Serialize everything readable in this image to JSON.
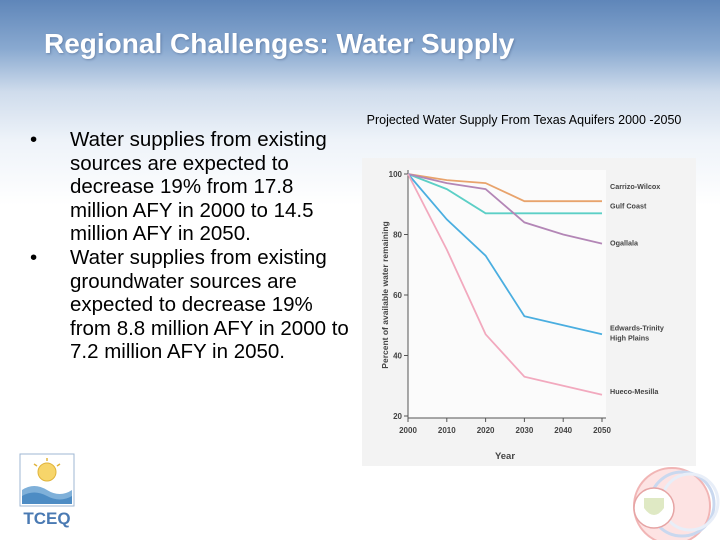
{
  "slide": {
    "title": "Regional Challenges:  Water Supply",
    "bullets": [
      "Water supplies from existing sources are expected to decrease 19% from 17.8 million AFY in 2000 to 14.5 million AFY in 2050.",
      "Water supplies from existing groundwater sources are expected to decrease 19% from 8.8 million AFY in 2000 to 7.2 million AFY in 2050."
    ],
    "bullet_glyph": "•",
    "logo_text": "TCEQ"
  },
  "colors": {
    "title": "#ffffff",
    "header_gradient_top": "#5f86b9",
    "chart_background": "#f3f3f3"
  },
  "chart_data": {
    "type": "line",
    "title": "Projected Water Supply From Texas Aquifers 2000 -2050",
    "xlabel": "Year",
    "ylabel": "Percent of available water remaining",
    "x": [
      2000,
      2010,
      2020,
      2030,
      2040,
      2050
    ],
    "xlim": [
      2000,
      2050
    ],
    "ylim": [
      20,
      100
    ],
    "yticks": [
      20,
      40,
      60,
      80,
      100
    ],
    "grid": false,
    "series": [
      {
        "name": "Carrizo-Wilcox",
        "color": "#e8a36c",
        "values": [
          100,
          98,
          97,
          91,
          91,
          91
        ]
      },
      {
        "name": "Gulf Coast",
        "color": "#5ccfc6",
        "values": [
          100,
          95,
          87,
          87,
          87,
          87
        ]
      },
      {
        "name": "Ogallala",
        "color": "#b386b6",
        "values": [
          100,
          97,
          95,
          84,
          80,
          77
        ]
      },
      {
        "name": "Edwards-Trinity High Plains",
        "color": "#4aaee0",
        "values": [
          100,
          85,
          73,
          53,
          50,
          47
        ]
      },
      {
        "name": "Hueco-Mesilla",
        "color": "#f2a9be",
        "values": [
          100,
          75,
          47,
          33,
          30,
          27
        ]
      }
    ]
  }
}
